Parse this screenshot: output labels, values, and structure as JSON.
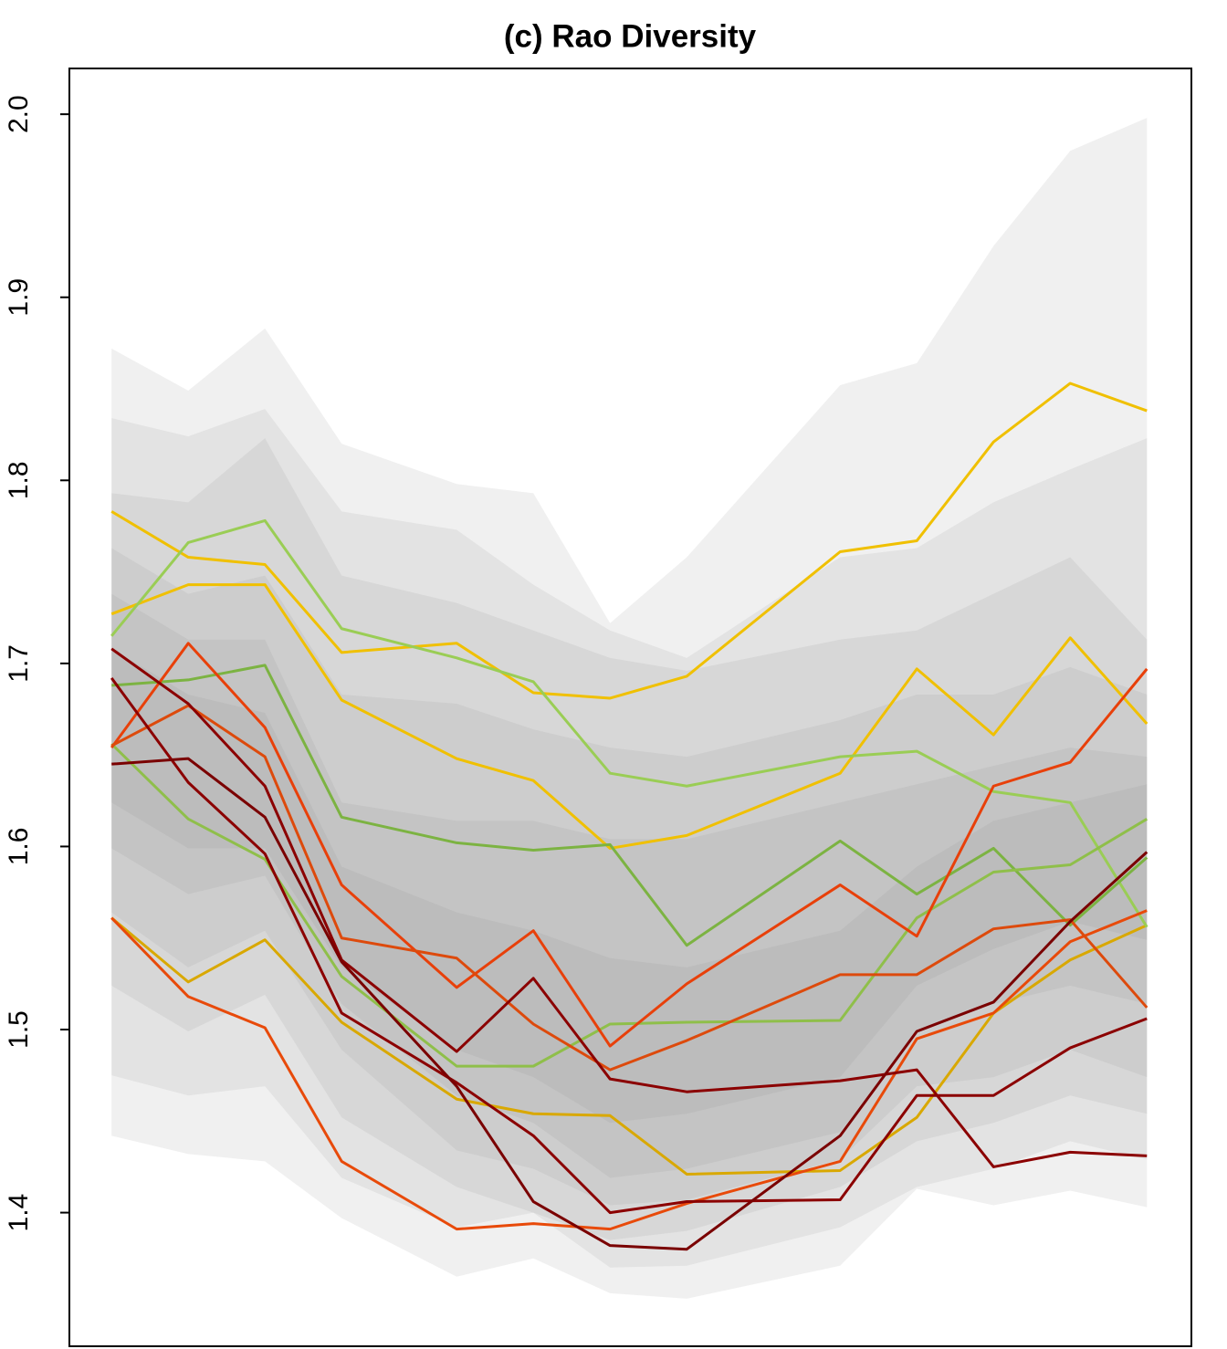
{
  "chart_data": {
    "type": "line",
    "title": "(c) Rao Diversity",
    "x": [
      0,
      1,
      2,
      3,
      4.5,
      5.5,
      6.5,
      7.5,
      9.5,
      10.5,
      11.5,
      12.5,
      13.5
    ],
    "xlim": [
      -0.55,
      14.08
    ],
    "ylim": [
      1.327,
      2.025
    ],
    "yticks": [
      1.4,
      1.5,
      1.6,
      1.7,
      1.8,
      1.9,
      {
        "value": 2,
        "label": "2.0"
      }
    ],
    "band_color": "#8c8c8c",
    "band_opacity": 0.13,
    "bands": [
      {
        "upper": [
          1.872,
          1.849,
          1.883,
          1.82,
          1.798,
          1.793,
          1.722,
          1.758,
          1.852,
          1.864,
          1.928,
          1.98,
          1.998
        ],
        "lower": [
          1.442,
          1.432,
          1.428,
          1.397,
          1.365,
          1.375,
          1.356,
          1.353,
          1.371,
          1.413,
          1.404,
          1.412,
          1.403
        ]
      },
      {
        "upper": [
          1.834,
          1.824,
          1.839,
          1.783,
          1.773,
          1.743,
          1.718,
          1.703,
          1.758,
          1.763,
          1.788,
          1.806,
          1.823
        ],
        "lower": [
          1.475,
          1.464,
          1.469,
          1.419,
          1.392,
          1.4,
          1.37,
          1.371,
          1.392,
          1.414,
          1.424,
          1.439,
          1.429
        ]
      },
      {
        "upper": [
          1.793,
          1.788,
          1.823,
          1.748,
          1.733,
          1.718,
          1.703,
          1.696,
          1.713,
          1.718,
          1.738,
          1.758,
          1.713
        ],
        "lower": [
          1.524,
          1.499,
          1.519,
          1.452,
          1.414,
          1.4,
          1.385,
          1.39,
          1.414,
          1.439,
          1.449,
          1.464,
          1.454
        ]
      },
      {
        "upper": [
          1.763,
          1.738,
          1.748,
          1.683,
          1.678,
          1.664,
          1.654,
          1.649,
          1.669,
          1.683,
          1.683,
          1.698,
          1.683
        ],
        "lower": [
          1.564,
          1.534,
          1.554,
          1.489,
          1.434,
          1.424,
          1.404,
          1.407,
          1.429,
          1.469,
          1.474,
          1.489,
          1.474
        ]
      },
      {
        "upper": [
          1.738,
          1.713,
          1.713,
          1.624,
          1.614,
          1.614,
          1.604,
          1.604,
          1.624,
          1.634,
          1.644,
          1.654,
          1.649
        ],
        "lower": [
          1.599,
          1.574,
          1.584,
          1.514,
          1.464,
          1.449,
          1.419,
          1.424,
          1.444,
          1.499,
          1.514,
          1.524,
          1.514
        ]
      },
      {
        "upper": [
          1.708,
          1.683,
          1.673,
          1.589,
          1.564,
          1.554,
          1.539,
          1.534,
          1.554,
          1.589,
          1.614,
          1.624,
          1.634
        ],
        "lower": [
          1.624,
          1.599,
          1.599,
          1.534,
          1.489,
          1.474,
          1.449,
          1.454,
          1.474,
          1.524,
          1.544,
          1.559,
          1.549
        ]
      }
    ],
    "series": [
      {
        "color": "#f0c000",
        "values": [
          1.783,
          1.758,
          1.754,
          1.706,
          1.711,
          1.684,
          1.681,
          1.693,
          1.761,
          1.767,
          1.821,
          1.853,
          1.838
        ]
      },
      {
        "color": "#f0c000",
        "values": [
          1.727,
          1.743,
          1.743,
          1.68,
          1.648,
          1.636,
          1.599,
          1.606,
          1.64,
          1.697,
          1.661,
          1.714,
          1.667
        ]
      },
      {
        "color": "#d9a800",
        "values": [
          1.561,
          1.526,
          1.549,
          1.504,
          1.462,
          1.454,
          1.453,
          1.421,
          1.423,
          1.452,
          1.509,
          1.538,
          1.557
        ]
      },
      {
        "color": "#9acd55",
        "values": [
          1.715,
          1.766,
          1.778,
          1.719,
          1.703,
          1.69,
          1.64,
          1.633,
          1.649,
          1.652,
          1.63,
          1.624,
          1.556
        ]
      },
      {
        "color": "#7cb342",
        "values": [
          1.688,
          1.691,
          1.699,
          1.616,
          1.602,
          1.598,
          1.601,
          1.546,
          1.603,
          1.574,
          1.599,
          1.557,
          1.594
        ]
      },
      {
        "color": "#8fbf4a",
        "values": [
          1.656,
          1.615,
          1.593,
          1.529,
          1.48,
          1.48,
          1.503,
          1.504,
          1.505,
          1.561,
          1.586,
          1.59,
          1.615
        ]
      },
      {
        "color": "#e84a0a",
        "values": [
          1.561,
          1.518,
          1.501,
          1.428,
          1.391,
          1.394,
          1.391,
          1.405,
          1.428,
          1.495,
          1.509,
          1.548,
          1.565
        ]
      },
      {
        "color": "#e8400a",
        "values": [
          1.654,
          1.711,
          1.665,
          1.579,
          1.523,
          1.554,
          1.491,
          1.525,
          1.579,
          1.551,
          1.633,
          1.646,
          1.697
        ]
      },
      {
        "color": "#dd4a0c",
        "values": [
          1.655,
          1.677,
          1.649,
          1.55,
          1.539,
          1.503,
          1.478,
          1.494,
          1.53,
          1.53,
          1.555,
          1.56,
          1.512
        ]
      },
      {
        "color": "#8b0000",
        "values": [
          1.708,
          1.678,
          1.633,
          1.538,
          1.488,
          1.528,
          1.473,
          1.466,
          1.472,
          1.478,
          1.425,
          1.433,
          1.431
        ]
      },
      {
        "color": "#8b0000",
        "values": [
          1.692,
          1.635,
          1.596,
          1.509,
          1.471,
          1.442,
          1.4,
          1.406,
          1.407,
          1.464,
          1.464,
          1.49,
          1.506
        ]
      },
      {
        "color": "#7a0000",
        "values": [
          1.645,
          1.648,
          1.616,
          1.537,
          1.469,
          1.406,
          1.382,
          1.38,
          1.442,
          1.499,
          1.515,
          1.559,
          1.597
        ]
      }
    ]
  }
}
